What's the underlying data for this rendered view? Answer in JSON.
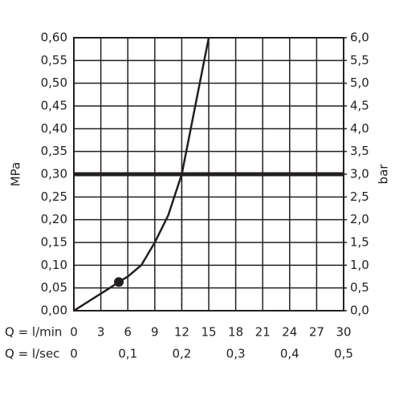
{
  "chart_data": {
    "type": "line",
    "ylabel": "MPa",
    "y2label": "bar",
    "xlabel": "Q = l/min",
    "x2label": "Q = l/sec",
    "xlim": [
      0,
      30
    ],
    "xticks": [
      0,
      3,
      6,
      9,
      12,
      15,
      18,
      21,
      24,
      27,
      30
    ],
    "x2lim": [
      0,
      0.5
    ],
    "x2ticks": [
      0,
      {
        "value": 0.1,
        "label": "0,1"
      },
      {
        "value": 0.2,
        "label": "0,2"
      },
      {
        "value": 0.3,
        "label": "0,3"
      },
      {
        "value": 0.4,
        "label": "0,4"
      },
      {
        "value": 0.5,
        "label": "0,5"
      }
    ],
    "ylim": [
      0,
      0.6
    ],
    "yticks": [
      {
        "value": 0,
        "label": "0,00"
      },
      {
        "value": 0.05,
        "label": "0,05"
      },
      {
        "value": 0.1,
        "label": "0,10"
      },
      {
        "value": 0.15,
        "label": "0,15"
      },
      {
        "value": 0.2,
        "label": "0,20"
      },
      {
        "value": 0.25,
        "label": "0,25"
      },
      {
        "value": 0.3,
        "label": "0,30"
      },
      {
        "value": 0.35,
        "label": "0,35"
      },
      {
        "value": 0.4,
        "label": "0,40"
      },
      {
        "value": 0.45,
        "label": "0,45"
      },
      {
        "value": 0.5,
        "label": "0,50"
      },
      {
        "value": 0.55,
        "label": "0,55"
      },
      {
        "value": 0.6,
        "label": "0,60"
      }
    ],
    "y2lim": [
      0,
      6
    ],
    "y2ticks": [
      {
        "value": 0,
        "label": "0,0"
      },
      {
        "value": 0.5,
        "label": "0,5"
      },
      {
        "value": 1,
        "label": "1,0"
      },
      {
        "value": 1.5,
        "label": "1,5"
      },
      {
        "value": 2,
        "label": "2,0"
      },
      {
        "value": 2.5,
        "label": "2,5"
      },
      {
        "value": 3,
        "label": "3,0"
      },
      {
        "value": 3.5,
        "label": "3,5"
      },
      {
        "value": 4,
        "label": "4,0"
      },
      {
        "value": 4.5,
        "label": "4,5"
      },
      {
        "value": 5,
        "label": "5,0"
      },
      {
        "value": 5.5,
        "label": "5,5"
      },
      {
        "value": 6,
        "label": "6,0"
      }
    ],
    "grid": true,
    "color": "#231f20",
    "series": [
      {
        "x": [
          0,
          2,
          4,
          5,
          6,
          7.5,
          9,
          10.5,
          12,
          13,
          14,
          15
        ],
        "values": [
          0,
          0.025,
          0.05,
          0.063,
          0.075,
          0.1,
          0.15,
          0.21,
          0.3,
          0.4,
          0.5,
          0.6
        ]
      }
    ],
    "reference_line": {
      "y": 0.3
    },
    "drop_line": {
      "x": 12
    },
    "marker": {
      "x": 5,
      "y": 0.063
    }
  }
}
